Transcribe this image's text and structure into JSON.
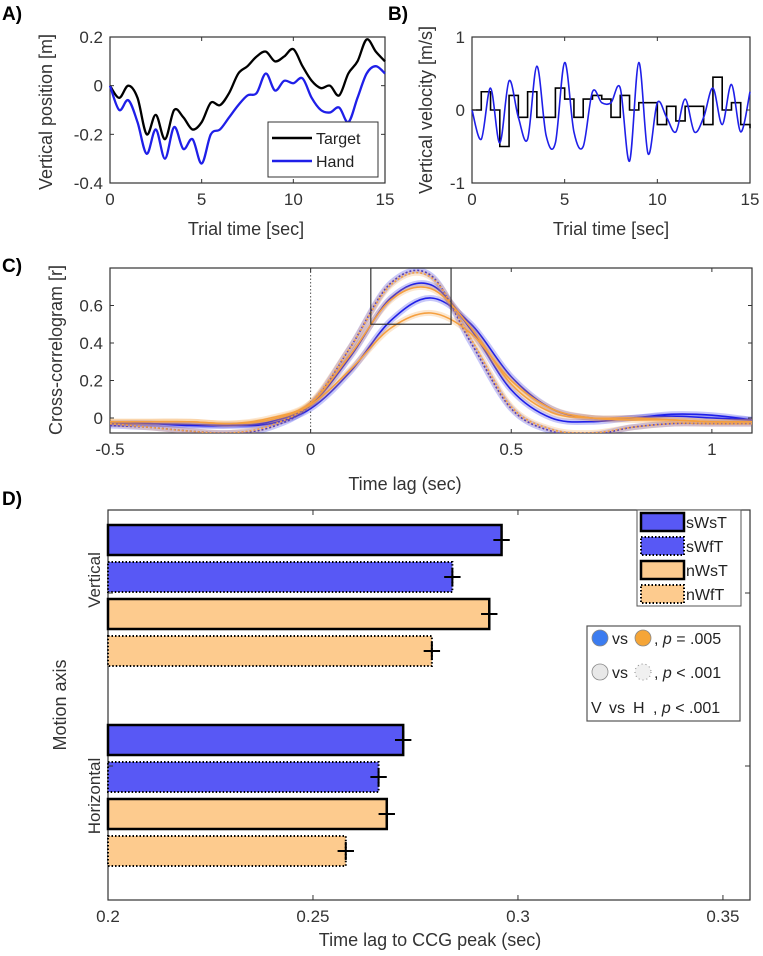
{
  "panel_labels": {
    "a": "A)",
    "b": "B)",
    "c": "C)",
    "d": "D)"
  },
  "colors": {
    "blue": "#1f1fe8",
    "orange": "#f5a040",
    "target": "#000000",
    "bar_blue": "#5858f5",
    "bar_orange": "#fdcb8e"
  },
  "chart_data": [
    {
      "id": "A",
      "type": "line",
      "xlabel": "Trial time [sec]",
      "ylabel": "Vertical position [m]",
      "xlim": [
        0,
        15
      ],
      "ylim": [
        -0.4,
        0.2
      ],
      "xticks": [
        "0",
        "5",
        "10",
        "15"
      ],
      "yticks": [
        "0.2",
        "0",
        "-0.2",
        "-0.4"
      ],
      "legend": [
        "Target",
        "Hand"
      ],
      "legend_position": "bottom-right",
      "x": [
        0,
        0.5,
        1,
        1.5,
        2,
        2.5,
        3,
        3.5,
        4,
        4.5,
        5,
        5.5,
        6,
        6.5,
        7,
        7.5,
        8,
        8.5,
        9,
        9.5,
        10,
        10.5,
        11,
        11.5,
        12,
        12.5,
        13,
        13.5,
        14,
        14.5,
        15
      ],
      "series": [
        {
          "name": "Target",
          "values": [
            0,
            -0.05,
            0,
            -0.05,
            -0.2,
            -0.12,
            -0.22,
            -0.1,
            -0.13,
            -0.18,
            -0.15,
            -0.07,
            -0.08,
            -0.03,
            0.05,
            0.08,
            0.12,
            0.14,
            0.1,
            0.12,
            0.15,
            0.08,
            0.02,
            -0.01,
            0,
            -0.04,
            0.05,
            0.1,
            0.19,
            0.14,
            0.1
          ]
        },
        {
          "name": "Hand",
          "values": [
            0,
            -0.1,
            -0.06,
            -0.15,
            -0.28,
            -0.18,
            -0.3,
            -0.17,
            -0.26,
            -0.22,
            -0.32,
            -0.2,
            -0.18,
            -0.13,
            -0.08,
            -0.04,
            -0.03,
            0.05,
            -0.02,
            0.02,
            0.01,
            0.03,
            -0.05,
            -0.1,
            -0.11,
            -0.09,
            -0.15,
            -0.05,
            0.05,
            0.08,
            0.05
          ]
        }
      ]
    },
    {
      "id": "B",
      "type": "line",
      "xlabel": "Trial time [sec]",
      "ylabel": "Vertical velocity [m/s]",
      "xlim": [
        0,
        15
      ],
      "ylim": [
        -1,
        1
      ],
      "xticks": [
        "0",
        "5",
        "10",
        "15"
      ],
      "yticks": [
        "1",
        "0",
        "-1"
      ],
      "x": [
        0,
        0.5,
        1,
        1.5,
        2,
        2.5,
        3,
        3.5,
        4,
        4.5,
        5,
        5.5,
        6,
        6.5,
        7,
        7.5,
        8,
        8.5,
        9,
        9.5,
        10,
        10.5,
        11,
        11.5,
        12,
        12.5,
        13,
        13.5,
        14,
        14.5,
        15
      ],
      "series": [
        {
          "name": "Target",
          "values": [
            0,
            0.25,
            0,
            -0.5,
            0.2,
            -0.1,
            0.25,
            -0.1,
            -0.1,
            0.3,
            0.15,
            -0.1,
            0.15,
            0.2,
            0.15,
            -0.1,
            0.2,
            0,
            0.1,
            0.1,
            -0.2,
            0.05,
            -0.15,
            0.05,
            0.05,
            -0.2,
            0.45,
            0,
            0.1,
            -0.2,
            -0.25
          ]
        },
        {
          "name": "Hand",
          "values": [
            0,
            -0.4,
            0.3,
            -0.45,
            0.4,
            -0.1,
            -0.4,
            0.6,
            -0.35,
            -0.45,
            0.65,
            -0.3,
            -0.5,
            0.25,
            0.1,
            0.1,
            0.3,
            -0.7,
            0.65,
            -0.6,
            0.1,
            -0.1,
            -0.3,
            0.15,
            -0.3,
            -0.1,
            0.3,
            -0.2,
            0.35,
            -0.3,
            0.25
          ]
        }
      ]
    },
    {
      "id": "C",
      "type": "line",
      "xlabel": "Time lag (sec)",
      "ylabel": "Cross-correlogram [r]",
      "xlim": [
        -0.5,
        1.1
      ],
      "ylim": [
        -0.08,
        0.8
      ],
      "xticks": [
        "-0.5",
        "0",
        "0.5",
        "1"
      ],
      "yticks": [
        "0.6",
        "0.4",
        "0.2",
        "0"
      ],
      "zoom_box": {
        "x": [
          0.15,
          0.35
        ],
        "y": [
          0.5,
          0.8
        ]
      },
      "x": [
        -0.5,
        -0.4,
        -0.3,
        -0.2,
        -0.1,
        0,
        0.1,
        0.2,
        0.3,
        0.4,
        0.5,
        0.6,
        0.7,
        0.8,
        0.9,
        1.0,
        1.1
      ],
      "series": [
        {
          "name": "blue-1",
          "color": "blue",
          "dashed": false,
          "values": [
            -0.03,
            -0.03,
            -0.035,
            -0.04,
            -0.03,
            0.05,
            0.25,
            0.52,
            0.64,
            0.5,
            0.22,
            0.05,
            0.0,
            0.0,
            0.02,
            0.015,
            -0.01
          ]
        },
        {
          "name": "blue-2",
          "color": "blue",
          "dashed": false,
          "values": [
            -0.03,
            -0.03,
            -0.04,
            -0.04,
            -0.02,
            0.07,
            0.33,
            0.64,
            0.71,
            0.47,
            0.15,
            0.0,
            -0.02,
            0.0,
            0.01,
            0.0,
            -0.01
          ]
        },
        {
          "name": "blue-3",
          "color": "blue",
          "dashed": true,
          "values": [
            -0.04,
            -0.05,
            -0.07,
            -0.08,
            -0.05,
            0.07,
            0.38,
            0.72,
            0.76,
            0.4,
            0.05,
            -0.07,
            -0.09,
            -0.05,
            -0.03,
            -0.03,
            -0.03
          ]
        },
        {
          "name": "orange-1",
          "color": "orange",
          "dashed": false,
          "values": [
            -0.02,
            -0.02,
            -0.02,
            -0.03,
            -0.01,
            0.07,
            0.26,
            0.48,
            0.56,
            0.45,
            0.2,
            0.05,
            0.0,
            -0.01,
            -0.01,
            -0.02,
            -0.02
          ]
        },
        {
          "name": "orange-2",
          "color": "orange",
          "dashed": false,
          "values": [
            -0.02,
            -0.02,
            -0.02,
            -0.03,
            0.0,
            0.08,
            0.34,
            0.63,
            0.69,
            0.48,
            0.18,
            0.03,
            0.0,
            0.0,
            -0.01,
            -0.02,
            -0.02
          ]
        },
        {
          "name": "orange-3",
          "color": "orange",
          "dashed": true,
          "values": [
            -0.03,
            -0.05,
            -0.07,
            -0.08,
            -0.04,
            0.08,
            0.38,
            0.71,
            0.75,
            0.42,
            0.06,
            -0.06,
            -0.08,
            -0.05,
            -0.03,
            -0.03,
            -0.03
          ]
        }
      ]
    },
    {
      "id": "D",
      "type": "bar",
      "orientation": "horizontal",
      "xlabel": "Time lag to CCG peak (sec)",
      "ylabel": "Motion axis",
      "xlim": [
        0.2,
        0.3566
      ],
      "xticks": [
        "0.2",
        "0.25",
        "0.3",
        "0.35"
      ],
      "categories": [
        "Vertical",
        "Horizontal"
      ],
      "legend": [
        "sWsT",
        "sWfT",
        "nWsT",
        "nWfT"
      ],
      "legend_position": "top-right",
      "series": [
        {
          "name": "sWsT",
          "color": "blue",
          "dotted": false,
          "values": [
            0.296,
            0.272
          ],
          "err": [
            0.002,
            0.002
          ]
        },
        {
          "name": "sWfT",
          "color": "blue",
          "dotted": true,
          "values": [
            0.284,
            0.266
          ],
          "err": [
            0.002,
            0.002
          ]
        },
        {
          "name": "nWsT",
          "color": "orange",
          "dotted": false,
          "values": [
            0.293,
            0.268
          ],
          "err": [
            0.002,
            0.002
          ]
        },
        {
          "name": "nWfT",
          "color": "orange",
          "dotted": true,
          "values": [
            0.279,
            0.258
          ],
          "err": [
            0.002,
            0.002
          ]
        }
      ],
      "stats": [
        {
          "left": "",
          "vs": "vs",
          "right": "",
          "p_label": "p",
          "p_text": " = .005"
        },
        {
          "left": "",
          "vs": "vs",
          "right": "",
          "p_label": "p",
          "p_text": " < .001"
        },
        {
          "left": "V",
          "vs": "vs",
          "right": "H",
          "p_label": "p",
          "p_text": " < .001"
        }
      ]
    }
  ]
}
